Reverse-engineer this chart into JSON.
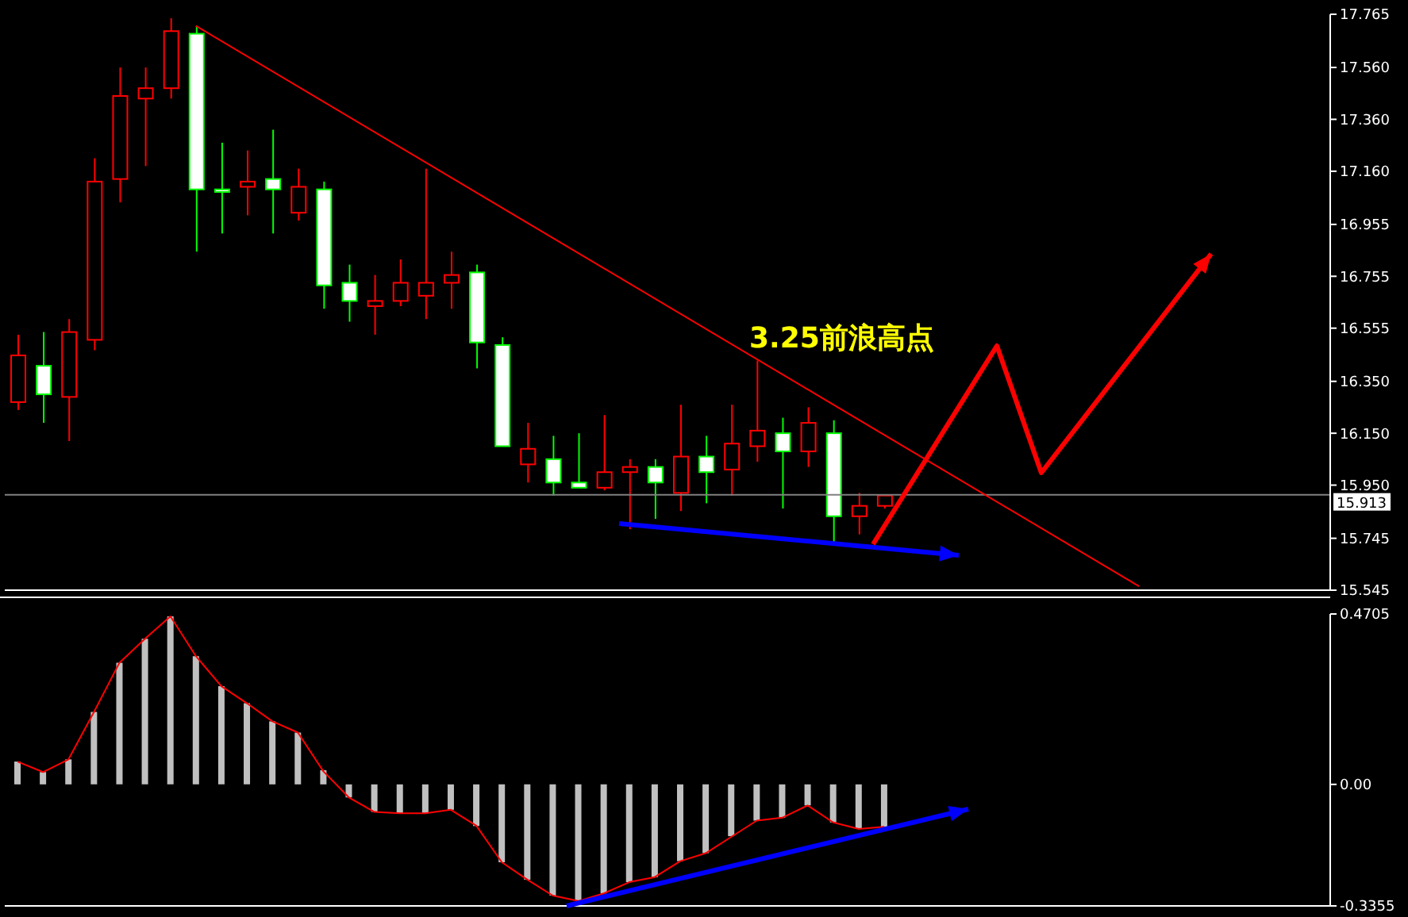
{
  "chart_data": [
    {
      "type": "candlestick",
      "categories": [
        null,
        null,
        null,
        null,
        null,
        null,
        null,
        null,
        null,
        null,
        null,
        null,
        null,
        null,
        null,
        null,
        null,
        null,
        null,
        null,
        null,
        null,
        null,
        null,
        null,
        null,
        null,
        null,
        null,
        null,
        null,
        null,
        null,
        null,
        null,
        null,
        null,
        null,
        null,
        null,
        null,
        null,
        null,
        null,
        null,
        null,
        null,
        null,
        null,
        null,
        null,
        null
      ],
      "ohlc": [
        [
          16.27,
          16.53,
          16.24,
          16.45
        ],
        [
          16.41,
          16.54,
          16.19,
          16.3
        ],
        [
          16.29,
          16.59,
          16.12,
          16.54
        ],
        [
          16.51,
          17.21,
          16.47,
          17.12
        ],
        [
          17.13,
          17.56,
          17.04,
          17.45
        ],
        [
          17.44,
          17.56,
          17.18,
          17.48
        ],
        [
          17.48,
          17.75,
          17.44,
          17.7
        ],
        [
          17.69,
          17.72,
          16.85,
          17.09
        ],
        [
          17.09,
          17.27,
          16.92,
          17.08
        ],
        [
          17.1,
          17.24,
          16.99,
          17.12
        ],
        [
          17.13,
          17.32,
          16.92,
          17.09
        ],
        [
          17.0,
          17.17,
          16.97,
          17.1
        ],
        [
          17.09,
          17.12,
          16.63,
          16.72
        ],
        [
          16.73,
          16.8,
          16.58,
          16.66
        ],
        [
          16.64,
          16.76,
          16.53,
          16.66
        ],
        [
          16.66,
          16.82,
          16.64,
          16.73
        ],
        [
          16.68,
          17.17,
          16.59,
          16.73
        ],
        [
          16.73,
          16.85,
          16.63,
          16.76
        ],
        [
          16.77,
          16.8,
          16.4,
          16.5
        ],
        [
          16.49,
          16.52,
          16.1,
          16.1
        ],
        [
          16.03,
          16.19,
          15.96,
          16.09
        ],
        [
          16.05,
          16.14,
          15.91,
          15.96
        ],
        [
          15.96,
          16.15,
          15.94,
          15.94
        ],
        [
          15.94,
          16.22,
          15.93,
          16.0
        ],
        [
          16.0,
          16.05,
          15.78,
          16.02
        ],
        [
          16.02,
          16.05,
          15.82,
          15.96
        ],
        [
          15.92,
          16.26,
          15.85,
          16.06
        ],
        [
          16.06,
          16.14,
          15.88,
          16.0
        ],
        [
          16.01,
          16.26,
          15.91,
          16.11
        ],
        [
          16.1,
          16.43,
          16.04,
          16.16
        ],
        [
          16.15,
          16.21,
          15.86,
          16.08
        ],
        [
          16.08,
          16.25,
          16.02,
          16.19
        ],
        [
          16.15,
          16.2,
          15.73,
          15.83
        ],
        [
          15.83,
          15.92,
          15.76,
          15.87
        ],
        [
          15.87,
          15.91,
          15.86,
          15.91
        ],
        null,
        null,
        null,
        null,
        null,
        null,
        null,
        null,
        null,
        null,
        null,
        null,
        null,
        null,
        null,
        null,
        null
      ],
      "colors": [
        "#ff0000",
        "#00ff00",
        "#ff0000",
        "#ff0000",
        "#ff0000",
        "#ff0000",
        "#ff0000",
        "#00ff00",
        "#00ff00",
        "#ff0000",
        "#00ff00",
        "#ff0000",
        "#00ff00",
        "#00ff00",
        "#ff0000",
        "#ff0000",
        "#ff0000",
        "#ff0000",
        "#00ff00",
        "#00ff00",
        "#ff0000",
        "#00ff00",
        "#00ff00",
        "#ff0000",
        "#ff0000",
        "#00ff00",
        "#ff0000",
        "#00ff00",
        "#ff0000",
        "#ff0000",
        "#00ff00",
        "#ff0000",
        "#00ff00",
        "#ff0000",
        "#ff0000",
        null,
        null,
        null,
        null,
        null,
        null,
        null,
        null,
        null,
        null,
        null,
        null,
        null,
        null,
        null,
        null,
        null
      ],
      "series": [
        {
          "type": "line",
          "color": "#ff0000",
          "values": [
            null,
            null,
            null,
            null,
            null,
            null,
            null,
            17.72,
            null,
            null,
            null,
            null,
            null,
            null,
            null,
            null,
            null,
            null,
            null,
            null,
            null,
            null,
            null,
            null,
            null,
            null,
            null,
            null,
            null,
            null,
            null,
            null,
            null,
            null,
            null,
            null,
            null,
            null,
            null,
            null,
            null,
            null,
            null,
            null,
            15.56,
            null,
            null,
            null,
            null,
            null,
            null,
            null
          ]
        }
      ],
      "ylim": [
        15.545,
        17.765
      ],
      "yticks": [
        15.545,
        15.745,
        {
          "value": 15.95,
          "label": "15.950"
        },
        {
          "value": 16.15,
          "label": "16.150"
        },
        {
          "value": 16.35,
          "label": "16.350"
        },
        16.555,
        16.755,
        16.955,
        {
          "value": 17.16,
          "label": "17.160"
        },
        {
          "value": 17.36,
          "label": "17.360"
        },
        {
          "value": 17.56,
          "label": "17.560"
        },
        17.765
      ],
      "ref_lines": [
        {
          "axis": "y",
          "value": 15.913,
          "label": "15.913",
          "color": "#808080"
        }
      ],
      "annotations": [
        "3.25前浪高点"
      ],
      "tick_labels": "y"
    },
    {
      "type": "bar",
      "categories": [
        null,
        null,
        null,
        null,
        null,
        null,
        null,
        null,
        null,
        null,
        null,
        null,
        null,
        null,
        null,
        null,
        null,
        null,
        null,
        null,
        null,
        null,
        null,
        null,
        null,
        null,
        null,
        null,
        null,
        null,
        null,
        null,
        null,
        null,
        null,
        null,
        null,
        null,
        null,
        null,
        null,
        null,
        null,
        null,
        null,
        null,
        null,
        null,
        null,
        null,
        null,
        null
      ],
      "series": [
        {
          "type": "bar",
          "color": "#c0c0c0",
          "values": [
            0.063,
            0.034,
            0.069,
            0.2,
            0.336,
            0.402,
            0.464,
            0.354,
            0.271,
            0.224,
            0.174,
            0.143,
            0.039,
            -0.036,
            -0.076,
            -0.079,
            -0.079,
            -0.07,
            -0.115,
            -0.215,
            -0.263,
            -0.307,
            -0.322,
            -0.301,
            -0.27,
            -0.256,
            -0.212,
            -0.19,
            -0.143,
            -0.1,
            -0.092,
            -0.058,
            -0.105,
            -0.121,
            -0.117,
            null,
            null,
            null,
            null,
            null,
            null,
            null,
            null,
            null,
            null,
            null,
            null,
            null,
            null,
            null,
            null,
            null
          ]
        },
        {
          "type": "line",
          "color": "#ff0000",
          "values": [
            0.063,
            0.034,
            0.069,
            0.2,
            0.336,
            0.402,
            0.464,
            0.354,
            0.271,
            0.224,
            0.174,
            0.143,
            0.036,
            -0.036,
            -0.076,
            -0.08,
            -0.08,
            -0.07,
            -0.114,
            -0.215,
            -0.263,
            -0.307,
            -0.322,
            -0.301,
            -0.27,
            -0.256,
            -0.212,
            -0.19,
            -0.145,
            -0.1,
            -0.092,
            -0.058,
            -0.105,
            -0.123,
            -0.117,
            null,
            null,
            null,
            null,
            null,
            null,
            null,
            null,
            null,
            null,
            null,
            null,
            null,
            null,
            null,
            null,
            null
          ]
        }
      ],
      "ylim": [
        -0.3355,
        0.4705
      ],
      "yticks": [
        -0.3355,
        {
          "value": 0,
          "label": "0.00"
        },
        0.4705
      ],
      "tick_labels": "y"
    }
  ]
}
